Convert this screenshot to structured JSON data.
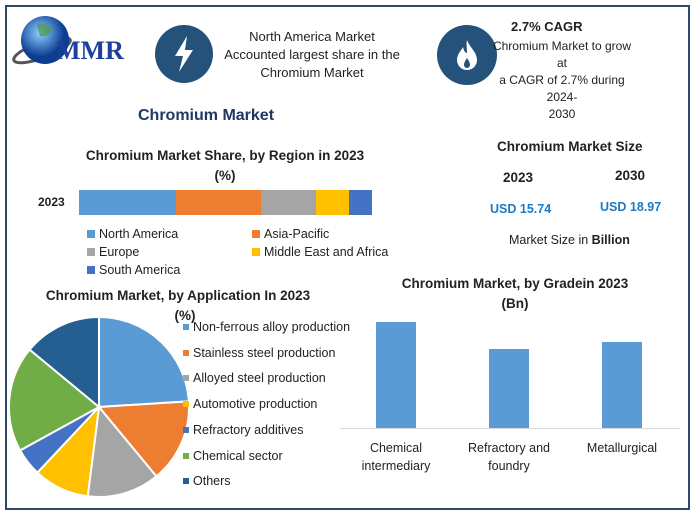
{
  "logo": {
    "text": "MMR"
  },
  "header": {
    "highlight1": {
      "icon": "lightning-icon",
      "lines": [
        "North America Market",
        "Accounted largest share in the",
        "Chromium Market"
      ]
    },
    "highlight2": {
      "icon": "flame-icon",
      "title": "2.7% CAGR",
      "lines": [
        "Chromium Market to grow at",
        "a CAGR of 2.7% during 2024-",
        "2030"
      ]
    }
  },
  "main_title": "Chromium Market",
  "market_size": {
    "title": "Chromium Market Size",
    "year1": "2023",
    "year2": "2030",
    "value1": "USD 15.74",
    "value2": "USD 18.97",
    "note_prefix": "Market Size in ",
    "note_bold": "Billion",
    "value_color": "#1f7ac4"
  },
  "chart_data": [
    {
      "type": "bar",
      "stacked": true,
      "orientation": "horizontal",
      "title": "Chromium Market Share, by Region in 2023",
      "subtitle": "(%)",
      "categories": [
        "2023"
      ],
      "series": [
        {
          "name": "North America",
          "values": [
            33
          ],
          "color": "#5b9bd5"
        },
        {
          "name": "Asia-Pacific",
          "values": [
            29
          ],
          "color": "#ed7d31"
        },
        {
          "name": "Europe",
          "values": [
            19
          ],
          "color": "#a5a5a5"
        },
        {
          "name": "Middle East and Africa",
          "values": [
            11
          ],
          "color": "#ffc000"
        },
        {
          "name": "South America",
          "values": [
            8
          ],
          "color": "#4472c4"
        }
      ],
      "legend": "bottom"
    },
    {
      "type": "pie",
      "title": "Chromium Market, by Application In 2023",
      "subtitle": "(%)",
      "categories": [
        "Non-ferrous alloy production",
        "Stainless steel production",
        "Alloyed steel production",
        "Automotive production",
        "Refractory additives",
        "Chemical sector",
        "Others"
      ],
      "values": [
        24,
        15,
        13,
        10,
        5,
        19,
        14
      ],
      "colors": [
        "#5b9bd5",
        "#ed7d31",
        "#a5a5a5",
        "#ffc000",
        "#4472c4",
        "#70ad47",
        "#255e91"
      ],
      "legend": "right"
    },
    {
      "type": "bar",
      "title": "Chromium Market, by Gradein 2023",
      "subtitle": "(Bn)",
      "categories": [
        "Chemical intermediary",
        "Refractory and foundry",
        "Metallurgical"
      ],
      "category_lines": [
        [
          "Chemical",
          "intermediary"
        ],
        [
          "Refractory and",
          "foundry"
        ],
        [
          "Metallurgical"
        ]
      ],
      "values": [
        10.6,
        7.9,
        8.6
      ],
      "ylim": [
        0,
        10.6
      ],
      "color": "#5b9bd5",
      "grid": false
    }
  ]
}
